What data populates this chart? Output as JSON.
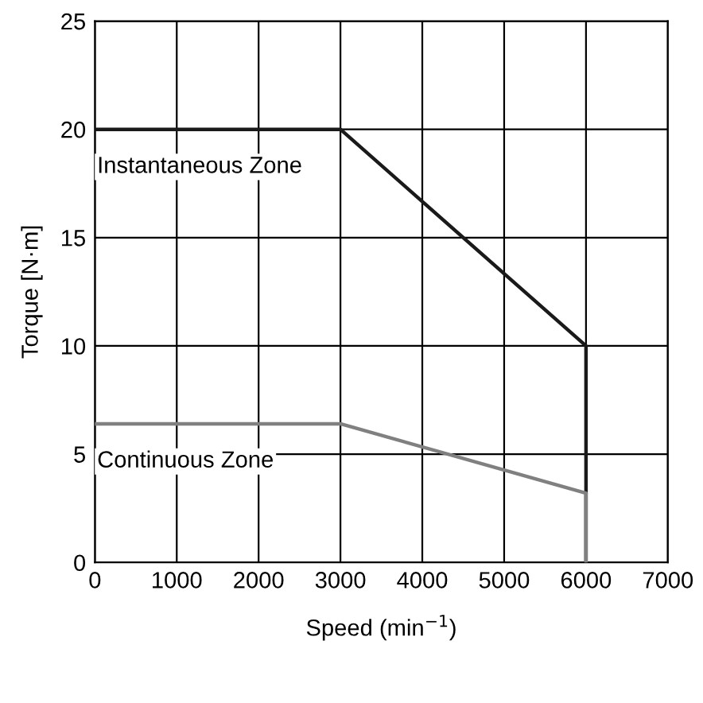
{
  "chart_data": {
    "type": "line",
    "xlabel": "Speed (min$^{−1}$)",
    "ylabel": "Torque [N·m]",
    "xlim": [
      0,
      7000
    ],
    "ylim": [
      0,
      25
    ],
    "xticks": [
      0,
      1000,
      2000,
      3000,
      4000,
      5000,
      6000,
      7000
    ],
    "yticks": [
      0,
      5,
      10,
      15,
      20,
      25
    ],
    "grid": true,
    "series": [
      {
        "name": "Instantaneous Zone",
        "color": "#1a1a1a",
        "x": [
          0,
          3000,
          6000,
          6000
        ],
        "values": [
          20,
          20,
          10,
          0
        ]
      },
      {
        "name": "Continuous Zone",
        "color": "#808080",
        "x": [
          0,
          3000,
          6000,
          6000
        ],
        "values": [
          6.4,
          6.4,
          3.2,
          0
        ]
      }
    ]
  }
}
